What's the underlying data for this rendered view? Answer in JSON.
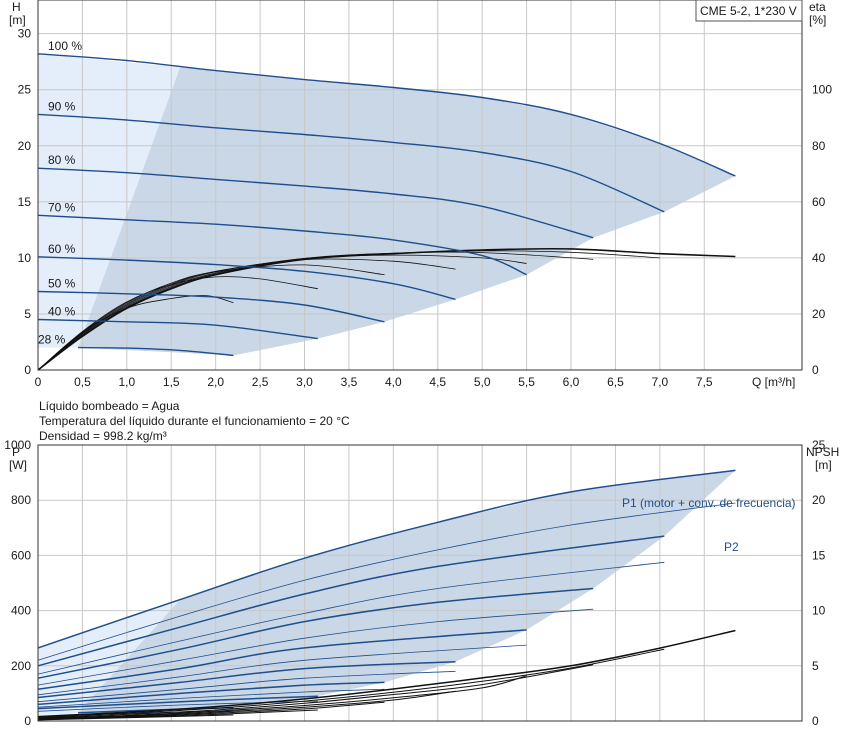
{
  "header": {
    "model_label": "CME 5-2, 1*230 V"
  },
  "notes": [
    "Líquido bombeado = Agua",
    "Temperatura del líquido durante el funcionamiento = 20 °C",
    "Densidad = 998.2 kg/m³"
  ],
  "colors": {
    "curve_blue": "#1f4e8c",
    "area_fill": "#c9d7e6",
    "area_light": "#e4eefa",
    "curve_black": "#111111"
  },
  "chart_data": [
    {
      "type": "line",
      "title": "",
      "ylabel": "H",
      "ylabel_unit": "[m]",
      "y2label": "eta",
      "y2label_unit": "[%]",
      "xlabel": "Q [m³/h]",
      "xlim": [
        0,
        8.6
      ],
      "ylim": [
        0,
        33
      ],
      "y2lim": [
        0,
        132
      ],
      "x_ticks": [
        "0",
        "0,5",
        "1,0",
        "1,5",
        "2,0",
        "2,5",
        "3,0",
        "3,5",
        "4,0",
        "4,5",
        "5,0",
        "5,5",
        "6,0",
        "6,5",
        "7,0",
        "7,5"
      ],
      "x_tick_values": [
        0,
        0.5,
        1,
        1.5,
        2,
        2.5,
        3,
        3.5,
        4,
        4.5,
        5,
        5.5,
        6,
        6.5,
        7,
        7.5
      ],
      "y_ticks": [
        0,
        5,
        10,
        15,
        20,
        25,
        30
      ],
      "y2_ticks": [
        0,
        20,
        40,
        60,
        80,
        100
      ],
      "grid": true,
      "series": [
        {
          "name": "100 %",
          "x": [
            0,
            1.0,
            2.0,
            3.0,
            4.0,
            5.0,
            6.0,
            7.0,
            7.85
          ],
          "values": [
            28.2,
            27.6,
            26.7,
            25.9,
            25.2,
            24.3,
            22.8,
            20.2,
            17.3
          ]
        },
        {
          "name": "90 %",
          "x": [
            0,
            1.0,
            2.0,
            3.0,
            4.0,
            5.0,
            6.0,
            7.05
          ],
          "values": [
            22.8,
            22.3,
            21.6,
            21.0,
            20.3,
            19.4,
            17.7,
            14.1
          ]
        },
        {
          "name": "80 %",
          "x": [
            0,
            1.0,
            2.0,
            3.0,
            4.0,
            5.0,
            6.25
          ],
          "values": [
            18.0,
            17.6,
            17.0,
            16.4,
            15.7,
            14.6,
            11.8
          ]
        },
        {
          "name": "70 %",
          "x": [
            0,
            1.0,
            2.0,
            3.0,
            4.0,
            5.0,
            5.5
          ],
          "values": [
            13.8,
            13.4,
            13.0,
            12.4,
            11.6,
            10.2,
            8.5
          ]
        },
        {
          "name": "60 %",
          "x": [
            0,
            1.0,
            2.0,
            3.0,
            4.0,
            4.7
          ],
          "values": [
            10.1,
            9.8,
            9.4,
            8.8,
            7.7,
            6.3
          ]
        },
        {
          "name": "50 %",
          "x": [
            0,
            1.0,
            2.0,
            3.0,
            3.9
          ],
          "values": [
            7.0,
            6.8,
            6.5,
            5.8,
            4.3
          ]
        },
        {
          "name": "40 %",
          "x": [
            0,
            1.0,
            2.0,
            3.15
          ],
          "values": [
            4.5,
            4.3,
            4.0,
            2.8
          ]
        },
        {
          "name": "28 %",
          "x": [
            0.45,
            1.0,
            1.6,
            2.2
          ],
          "values": [
            2.0,
            1.95,
            1.75,
            1.3
          ]
        }
      ],
      "efficiency_series": [
        {
          "x": [
            0,
            0.5,
            1.0,
            1.5,
            2.0,
            3.0,
            4.0,
            5.0,
            6.0,
            7.0,
            7.85
          ],
          "values": [
            0,
            12,
            22,
            29,
            34,
            39.5,
            41.5,
            42.8,
            43.2,
            41.5,
            40.5
          ]
        },
        {
          "x": [
            0,
            0.5,
            1.0,
            1.5,
            2.0,
            3.0,
            4.0,
            5.0,
            6.0,
            7.0
          ],
          "values": [
            0,
            12.3,
            22.4,
            29.4,
            34.3,
            39.6,
            41.6,
            42.5,
            42.0,
            40.0
          ]
        },
        {
          "x": [
            0,
            0.5,
            1.0,
            1.5,
            2.0,
            3.0,
            4.0,
            5.0,
            6.25
          ],
          "values": [
            0,
            12.6,
            22.8,
            29.8,
            34.6,
            39.8,
            41.7,
            41.9,
            39.5
          ]
        },
        {
          "x": [
            0,
            0.5,
            1.0,
            1.5,
            2.0,
            3.0,
            4.0,
            5.0,
            5.5
          ],
          "values": [
            0,
            12.9,
            23.2,
            30.2,
            35.0,
            39.8,
            41.0,
            40.0,
            38.0
          ]
        },
        {
          "x": [
            0,
            0.5,
            1.0,
            1.5,
            2.0,
            3.0,
            4.0,
            4.7
          ],
          "values": [
            0,
            13.2,
            23.6,
            30.6,
            35.2,
            39.4,
            38.8,
            36.0
          ]
        },
        {
          "x": [
            0,
            0.5,
            1.0,
            1.5,
            2.0,
            3.0,
            3.9
          ],
          "values": [
            0,
            13.5,
            24.0,
            31.0,
            35.0,
            37.5,
            34.0
          ]
        },
        {
          "x": [
            0,
            0.5,
            1.0,
            1.5,
            2.0,
            2.5,
            3.15
          ],
          "values": [
            0,
            13.7,
            24.3,
            30.5,
            33.2,
            32.5,
            29.0
          ]
        },
        {
          "x": [
            0,
            0.5,
            1.0,
            1.5,
            1.9,
            2.2
          ],
          "values": [
            0,
            13.5,
            22.0,
            25.5,
            26.5,
            24.0
          ]
        }
      ]
    },
    {
      "type": "line",
      "title": "",
      "ylabel": "P",
      "ylabel_unit": "[W]",
      "y2label": "NPSH",
      "y2label_unit": "[m]",
      "xlim": [
        0,
        8.6
      ],
      "ylim": [
        0,
        1000
      ],
      "y2lim": [
        0,
        25
      ],
      "y_ticks": [
        0,
        200,
        400,
        600,
        800,
        1000
      ],
      "y2_ticks": [
        0,
        5,
        10,
        15,
        20,
        25
      ],
      "grid": true,
      "annotations": [
        "P1 (motor + conv. de frecuencia)",
        "P2"
      ],
      "p1_series": [
        {
          "x": [
            0,
            1.6,
            3.0,
            4.5,
            6.0,
            7.85
          ],
          "values": [
            265,
            440,
            590,
            720,
            830,
            908
          ]
        },
        {
          "x": [
            0,
            1.6,
            3.0,
            4.5,
            7.05
          ],
          "values": [
            200,
            340,
            460,
            560,
            670
          ]
        },
        {
          "x": [
            0,
            1.6,
            3.0,
            4.5,
            6.25
          ],
          "values": [
            155,
            260,
            360,
            430,
            480
          ]
        },
        {
          "x": [
            0,
            1.6,
            3.0,
            5.5
          ],
          "values": [
            115,
            190,
            265,
            330
          ]
        },
        {
          "x": [
            0,
            1.6,
            3.0,
            4.7
          ],
          "values": [
            85,
            140,
            190,
            215
          ]
        },
        {
          "x": [
            0,
            1.6,
            3.0,
            3.9
          ],
          "values": [
            60,
            100,
            130,
            140
          ]
        },
        {
          "x": [
            0,
            1.6,
            3.15
          ],
          "values": [
            45,
            70,
            90
          ]
        },
        {
          "x": [
            0.45,
            1.3,
            2.2
          ],
          "values": [
            30,
            40,
            48
          ]
        }
      ],
      "p2_series": [
        {
          "x": [
            0,
            1.6,
            3.0,
            4.5,
            6.0,
            7.85
          ],
          "values": [
            220,
            380,
            510,
            620,
            710,
            790
          ]
        },
        {
          "x": [
            0,
            1.6,
            3.0,
            4.5,
            7.05
          ],
          "values": [
            170,
            290,
            390,
            480,
            575
          ]
        },
        {
          "x": [
            0,
            1.6,
            3.0,
            4.5,
            6.25
          ],
          "values": [
            130,
            220,
            300,
            360,
            405
          ]
        },
        {
          "x": [
            0,
            1.6,
            3.0,
            5.5
          ],
          "values": [
            95,
            160,
            220,
            275
          ]
        },
        {
          "x": [
            0,
            1.6,
            3.0,
            4.7
          ],
          "values": [
            70,
            115,
            155,
            180
          ]
        },
        {
          "x": [
            0,
            1.6,
            3.0,
            3.9
          ],
          "values": [
            50,
            82,
            105,
            115
          ]
        },
        {
          "x": [
            0,
            1.6,
            3.15
          ],
          "values": [
            35,
            58,
            72
          ]
        },
        {
          "x": [
            0.45,
            1.3,
            2.2
          ],
          "values": [
            22,
            30,
            36
          ]
        }
      ],
      "npsh_series": [
        {
          "x": [
            0,
            1.0,
            2.0,
            3.0,
            4.0,
            5.0,
            6.0,
            7.0,
            7.85
          ],
          "values": [
            0.4,
            0.8,
            1.3,
            2.0,
            2.9,
            3.9,
            5.0,
            6.6,
            8.2
          ]
        },
        {
          "x": [
            0,
            1.0,
            2.0,
            3.0,
            4.0,
            5.0,
            6.0,
            7.05
          ],
          "values": [
            0.35,
            0.7,
            1.15,
            1.8,
            2.6,
            3.6,
            4.8,
            6.5
          ]
        },
        {
          "x": [
            0,
            1.0,
            2.0,
            3.0,
            4.0,
            5.0,
            6.25
          ],
          "values": [
            0.3,
            0.6,
            1.0,
            1.6,
            2.4,
            3.3,
            5.1
          ]
        },
        {
          "x": [
            0,
            1.0,
            2.0,
            3.0,
            4.0,
            5.0,
            5.5
          ],
          "values": [
            0.25,
            0.5,
            0.9,
            1.4,
            2.1,
            3.0,
            4.1
          ]
        },
        {
          "x": [
            0,
            1.0,
            2.0,
            3.0,
            4.0,
            4.7
          ],
          "values": [
            0.2,
            0.45,
            0.8,
            1.25,
            1.9,
            2.7
          ]
        },
        {
          "x": [
            0,
            1.0,
            2.0,
            3.0,
            3.9
          ],
          "values": [
            0.15,
            0.4,
            0.7,
            1.1,
            1.7
          ]
        },
        {
          "x": [
            0,
            1.0,
            2.0,
            3.15
          ],
          "values": [
            0.12,
            0.35,
            0.6,
            1.0
          ]
        },
        {
          "x": [
            0,
            1.0,
            2.2
          ],
          "values": [
            0.1,
            0.3,
            0.55
          ]
        }
      ]
    }
  ]
}
